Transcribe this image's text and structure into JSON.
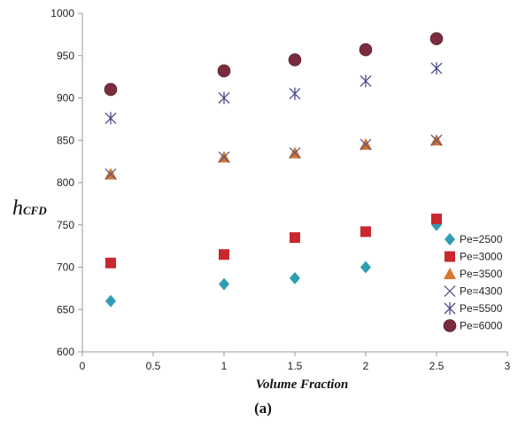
{
  "chart_data": {
    "type": "scatter",
    "ylabel_main": "h",
    "ylabel_sub": "CFD",
    "xlabel": "Volume Fraction",
    "caption": "(a)",
    "xlim": [
      0,
      3
    ],
    "ylim": [
      600,
      1000
    ],
    "xticks": [
      "0",
      "0.5",
      "1",
      "1.5",
      "2",
      "2.5",
      "3"
    ],
    "yticks": [
      "600",
      "650",
      "700",
      "750",
      "800",
      "850",
      "900",
      "950",
      "1000"
    ],
    "grid": false,
    "legend_position": "right",
    "series": [
      {
        "name": "Pe=2500",
        "marker": "diamond",
        "color": "#2e9eb0",
        "x": [
          0.2,
          1,
          1.5,
          2,
          2.5
        ],
        "y": [
          660,
          680,
          687,
          700,
          750
        ]
      },
      {
        "name": "Pe=3000",
        "marker": "square",
        "color": "#c8282e",
        "x": [
          0.2,
          1,
          1.5,
          2,
          2.5
        ],
        "y": [
          705,
          715,
          735,
          742,
          757
        ]
      },
      {
        "name": "Pe=3500",
        "marker": "triangle",
        "color": "#d9762b",
        "x": [
          0.2,
          1,
          1.5,
          2,
          2.5
        ],
        "y": [
          810,
          830,
          835,
          845,
          850
        ]
      },
      {
        "name": "Pe=4300",
        "marker": "x",
        "color": "#5a5a8c",
        "x": [
          0.2,
          1,
          1.5,
          2,
          2.5
        ],
        "y": [
          810,
          830,
          835,
          845,
          850
        ]
      },
      {
        "name": "Pe=5500",
        "marker": "star",
        "color": "#4a4a8a",
        "x": [
          0.2,
          1,
          1.5,
          2,
          2.5
        ],
        "y": [
          876,
          900,
          905,
          920,
          935
        ]
      },
      {
        "name": "Pe=6000",
        "marker": "circle",
        "color": "#7a2b3e",
        "x": [
          0.2,
          1,
          1.5,
          2,
          2.5
        ],
        "y": [
          910,
          932,
          945,
          957,
          970
        ]
      }
    ]
  }
}
